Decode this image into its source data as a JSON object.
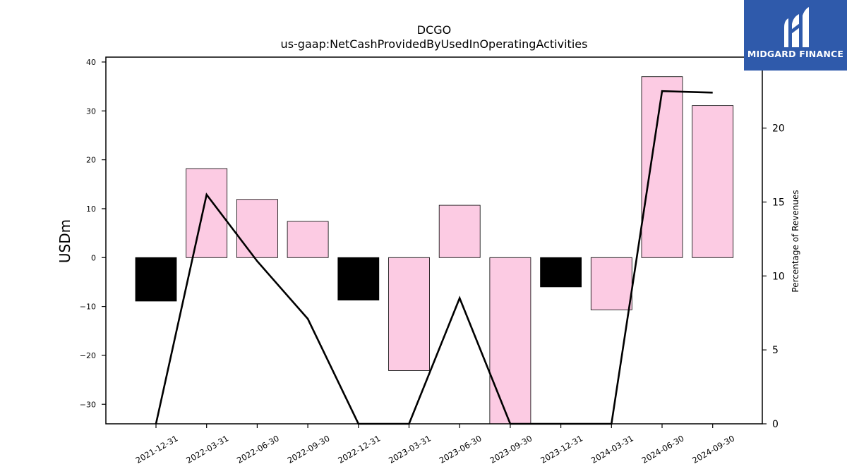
{
  "logo": {
    "text": "MIDGARD FINANCE",
    "bg_color": "#2f5aab"
  },
  "chart_data": {
    "type": "bar",
    "title": "DCGO",
    "subtitle": "us-gaap:NetCashProvidedByUsedInOperatingActivities",
    "ylabel": "USDm",
    "y2label": "Percentage of Revenues",
    "categories": [
      "2021-12-31",
      "2022-03-31",
      "2022-06-30",
      "2022-09-30",
      "2022-12-31",
      "2023-03-31",
      "2023-06-30",
      "2023-09-30",
      "2023-12-31",
      "2024-03-31",
      "2024-06-30",
      "2024-09-30"
    ],
    "ylim": [
      -34,
      41
    ],
    "y2lim": [
      0,
      24.8
    ],
    "yticks": [
      -30,
      -20,
      -10,
      0,
      10,
      20,
      30,
      40
    ],
    "y2ticks": [
      0,
      5,
      10,
      15,
      20
    ],
    "series": [
      {
        "kind": "bar",
        "values": [
          -8.9,
          18.2,
          11.9,
          7.4,
          -8.7,
          -23.1,
          10.7,
          -34.5,
          -6.0,
          -10.7,
          37.0,
          31.1
        ],
        "colors": [
          "#000000",
          "#fccbe3",
          "#fccbe3",
          "#fccbe3",
          "#000000",
          "#fccbe3",
          "#fccbe3",
          "#fccbe3",
          "#000000",
          "#fccbe3",
          "#fccbe3",
          "#fccbe3"
        ]
      },
      {
        "kind": "line",
        "axis": "right",
        "color": "#000000",
        "values": [
          0,
          15.5,
          11.0,
          7.1,
          0,
          0,
          8.5,
          0,
          0,
          0,
          22.5,
          22.4
        ]
      }
    ],
    "grid": false,
    "legend": "none"
  }
}
